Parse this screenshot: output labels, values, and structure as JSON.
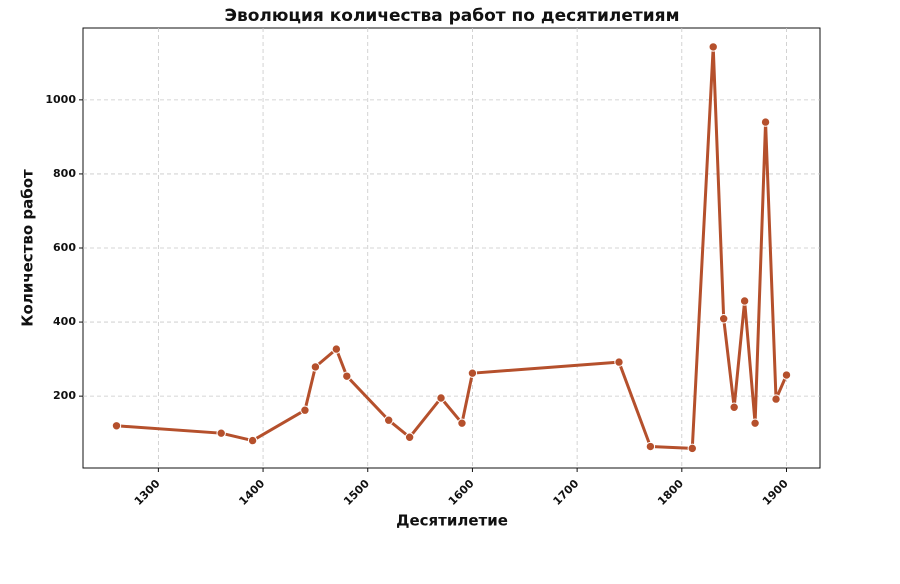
{
  "chart_data": {
    "type": "line",
    "title": "Эволюция количества работ по десятилетиям",
    "x_label": "Десятилетие",
    "y_label": "Количество работ",
    "x": [
      1260,
      1360,
      1390,
      1440,
      1450,
      1470,
      1480,
      1520,
      1540,
      1570,
      1590,
      1600,
      1740,
      1770,
      1810,
      1830,
      1840,
      1850,
      1860,
      1870,
      1880,
      1890,
      1900
    ],
    "series": [
      {
        "name": "Количество работ",
        "color": "#b5502c",
        "values": [
          120,
          100,
          80,
          162,
          279,
          327,
          254,
          135,
          89,
          195,
          127,
          262,
          292,
          64,
          59,
          1143,
          409,
          170,
          457,
          127,
          940,
          192,
          257
        ]
      }
    ],
    "xlim": [
      1228,
      1932
    ],
    "xticks": [
      1300,
      1400,
      1500,
      1600,
      1700,
      1800,
      1900
    ],
    "ylim": [
      6,
      1194
    ],
    "yticks": [
      200,
      400,
      600,
      800,
      1000
    ],
    "grid": true
  }
}
